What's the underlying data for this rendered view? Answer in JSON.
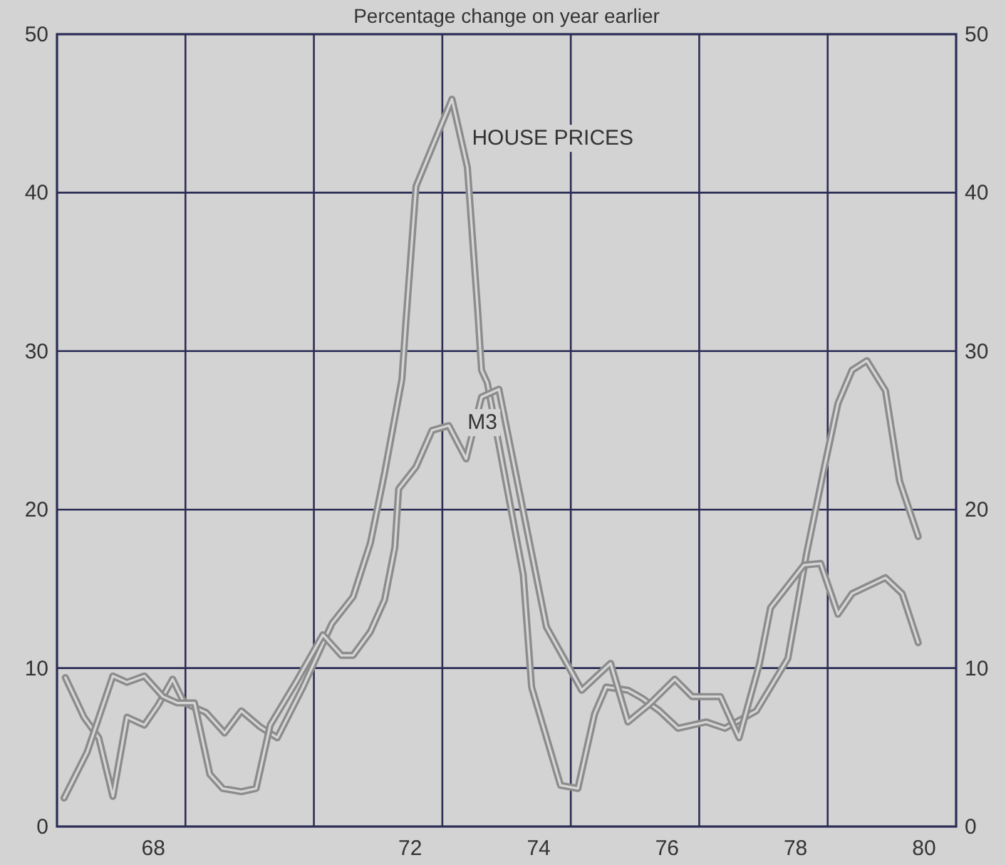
{
  "chart_data": {
    "type": "line",
    "title": "Percentage change on year earlier",
    "xlim": [
      66.5,
      80.5
    ],
    "xticks": [
      68,
      72,
      74,
      76,
      78,
      80,
      {
        "value": 68.5,
        "label": null
      },
      {
        "value": 70.5,
        "label": null
      },
      {
        "value": 72.5,
        "label": null
      },
      {
        "value": 74.5,
        "label": null
      },
      {
        "value": 76.5,
        "label": null
      },
      {
        "value": 78.5,
        "label": null
      }
    ],
    "ylim": [
      0,
      50
    ],
    "yticks": [
      0,
      10,
      20,
      30,
      40,
      50
    ],
    "y2lim": [
      0,
      50
    ],
    "y2ticks": [
      0,
      10,
      20,
      30,
      40,
      50
    ],
    "grid": true,
    "marker": "none",
    "line_style": "solid",
    "series": [
      {
        "name": "HOUSE PRICES",
        "color": "#8c8c8c",
        "x": [
          66.63,
          66.92,
          67.15,
          67.37,
          67.59,
          67.86,
          68.08,
          68.3,
          68.48,
          68.82,
          69.11,
          69.37,
          69.66,
          69.93,
          70.33,
          70.78,
          71.11,
          71.38,
          71.6,
          71.87,
          71.93,
          72.09,
          72.65,
          72.89,
          73.05,
          73.11,
          73.2,
          73.76,
          73.89,
          74.34,
          74.61,
          74.87,
          75.05,
          75.39,
          75.61,
          75.88,
          76.17,
          76.61,
          76.9,
          77.39,
          77.88,
          78.17,
          78.46,
          78.66,
          78.88,
          79.11,
          79.4,
          79.62,
          79.91
        ],
        "values": [
          9.4,
          6.9,
          5.6,
          1.9,
          6.9,
          6.4,
          7.7,
          9.3,
          7.8,
          7.2,
          5.9,
          7.3,
          6.3,
          5.6,
          8.8,
          12.8,
          14.5,
          17.9,
          22.3,
          28.2,
          31.7,
          40.4,
          45.9,
          41.6,
          32.6,
          28.8,
          28,
          15.9,
          8.8,
          2.6,
          2.4,
          7.1,
          8.8,
          8.6,
          8.1,
          7.3,
          6.2,
          6.6,
          6.2,
          7.3,
          10.6,
          17.2,
          22.9,
          26.7,
          28.8,
          29.4,
          27.5,
          21.8,
          18.3
        ]
      },
      {
        "name": "M3",
        "color": "#8c8c8c",
        "x": [
          66.61,
          66.97,
          67.37,
          67.59,
          67.86,
          68.15,
          68.37,
          68.64,
          68.88,
          69.08,
          69.37,
          69.6,
          69.82,
          70.22,
          70.64,
          70.93,
          71.11,
          71.38,
          71.6,
          71.76,
          71.82,
          72.09,
          72.34,
          72.6,
          72.87,
          73.11,
          73.38,
          74.12,
          74.67,
          75.12,
          75.39,
          75.72,
          76.12,
          76.39,
          76.83,
          77.12,
          77.44,
          77.61,
          78.13,
          78.39,
          78.66,
          78.88,
          79.4,
          79.66,
          79.91
        ],
        "values": [
          1.8,
          4.7,
          9.5,
          9.1,
          9.5,
          8.2,
          7.8,
          7.8,
          3.3,
          2.4,
          2.2,
          2.4,
          6.4,
          9.1,
          12.1,
          10.8,
          10.8,
          12.3,
          14.3,
          17.6,
          21.3,
          22.7,
          25,
          25.3,
          23.2,
          27.1,
          27.6,
          12.6,
          8.6,
          10.3,
          6.6,
          7.7,
          9.3,
          8.2,
          8.2,
          5.6,
          10.3,
          13.8,
          16.5,
          16.6,
          13.4,
          14.7,
          15.7,
          14.7,
          11.6
        ]
      }
    ]
  }
}
